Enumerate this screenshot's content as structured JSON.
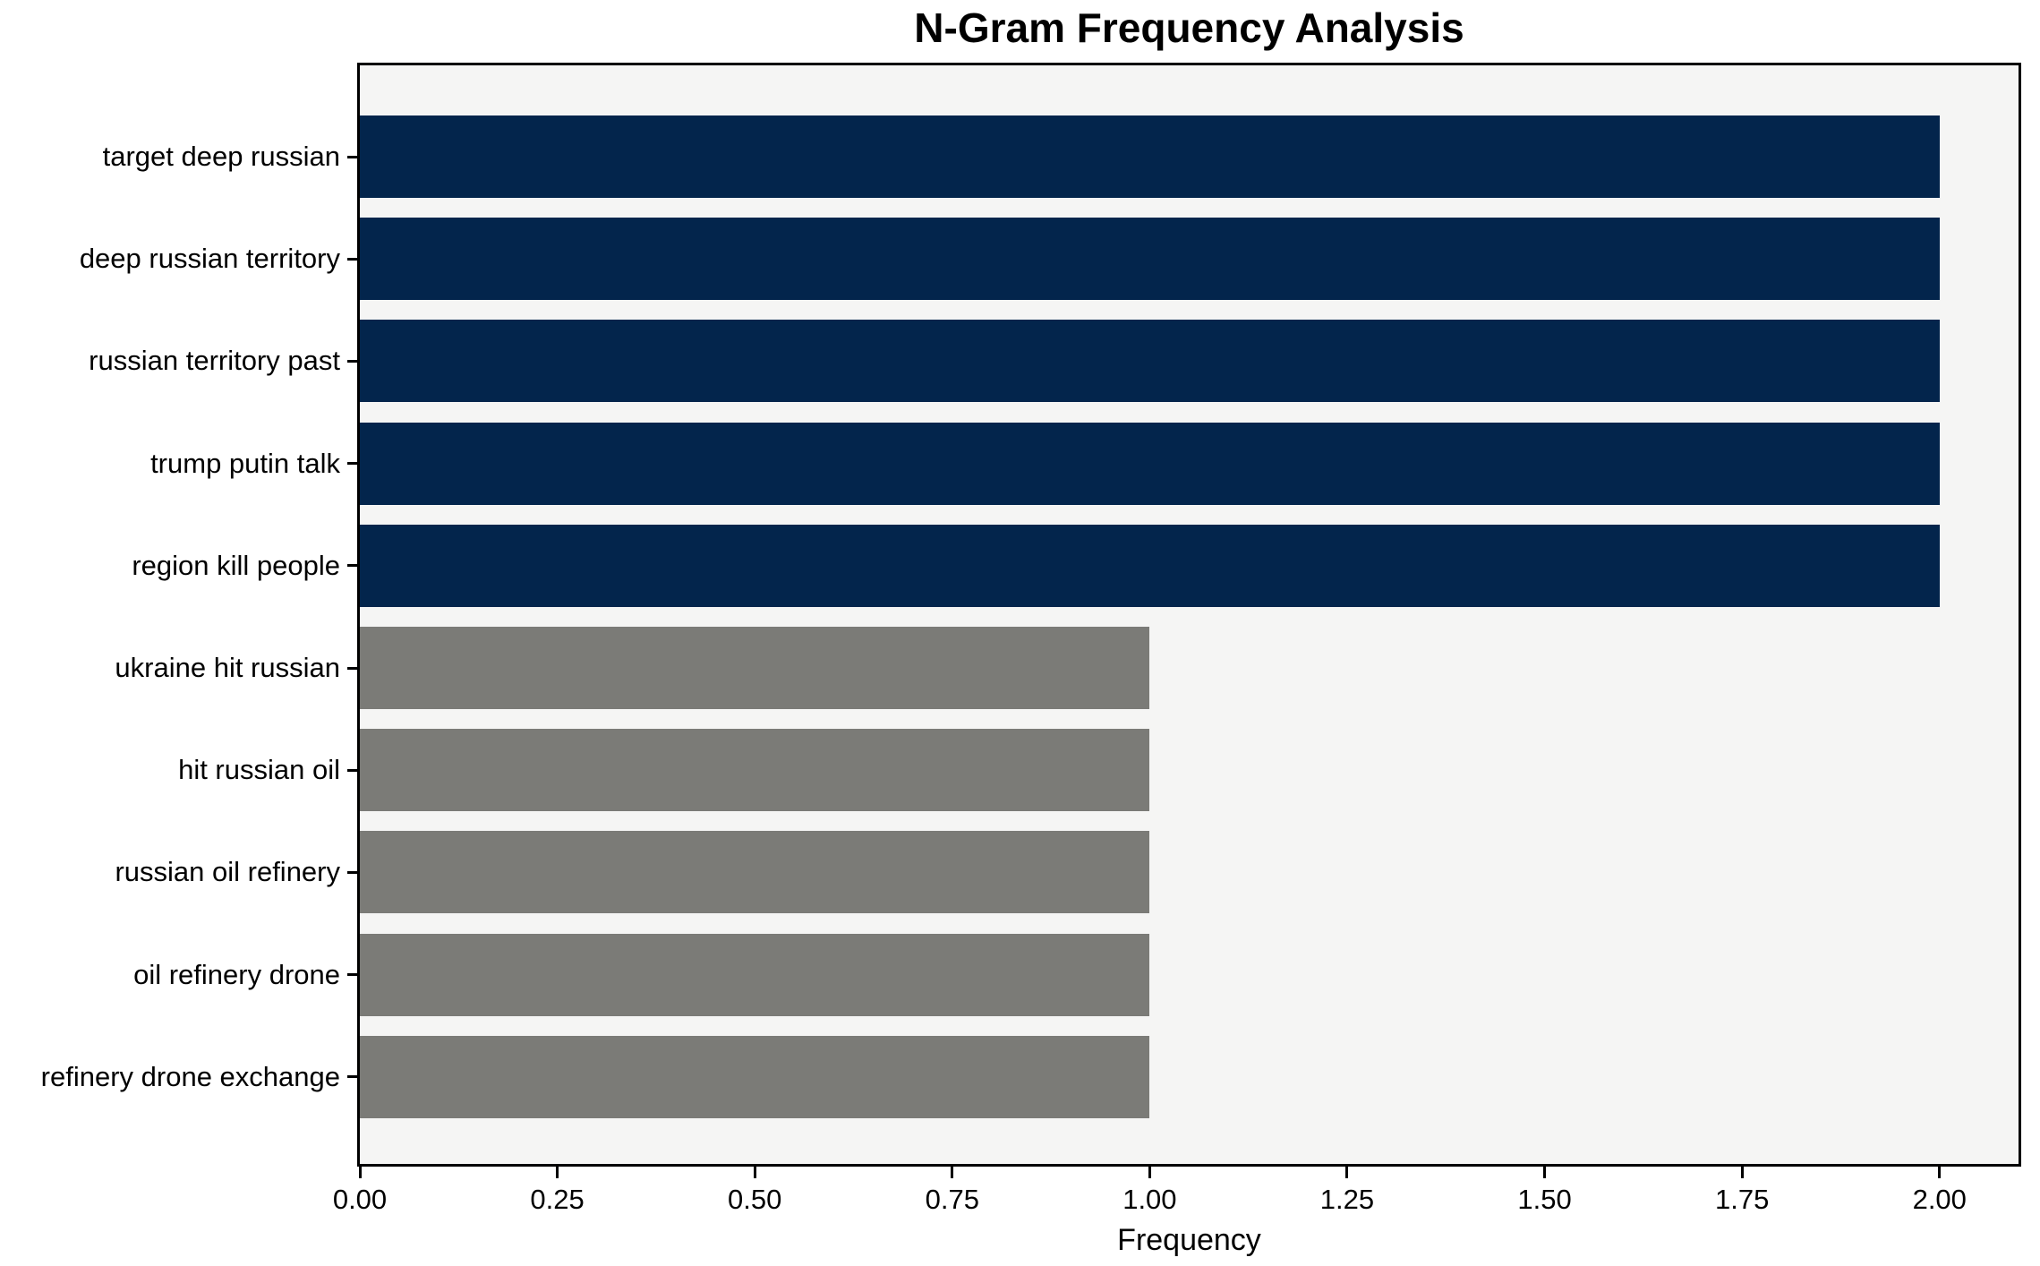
{
  "chart_data": {
    "type": "bar",
    "orientation": "horizontal",
    "title": "N-Gram Frequency Analysis",
    "xlabel": "Frequency",
    "ylabel": "",
    "categories": [
      "target deep russian",
      "deep russian territory",
      "russian territory past",
      "trump putin talk",
      "region kill people",
      "ukraine hit russian",
      "hit russian oil",
      "russian oil refinery",
      "oil refinery drone",
      "refinery drone exchange"
    ],
    "values": [
      2,
      2,
      2,
      2,
      2,
      1,
      1,
      1,
      1,
      1
    ],
    "bar_colors": [
      "#03254c",
      "#03254c",
      "#03254c",
      "#03254c",
      "#03254c",
      "#7b7b77",
      "#7b7b77",
      "#7b7b77",
      "#7b7b77",
      "#7b7b77"
    ],
    "xlim": [
      0,
      2.1
    ],
    "xticks": [
      0,
      0.25,
      0.5,
      0.75,
      1.0,
      1.25,
      1.5,
      1.75,
      2.0
    ],
    "xtick_labels": [
      "0.00",
      "0.25",
      "0.50",
      "0.75",
      "1.00",
      "1.25",
      "1.50",
      "1.75",
      "2.00"
    ],
    "grid": false,
    "legend_position": "none",
    "colors": {
      "high_value_bar": "#03254c",
      "low_value_bar": "#7b7b77",
      "plot_background": "#f5f5f4",
      "figure_background": "#ffffff",
      "spine": "#000000",
      "text": "#000000"
    }
  }
}
